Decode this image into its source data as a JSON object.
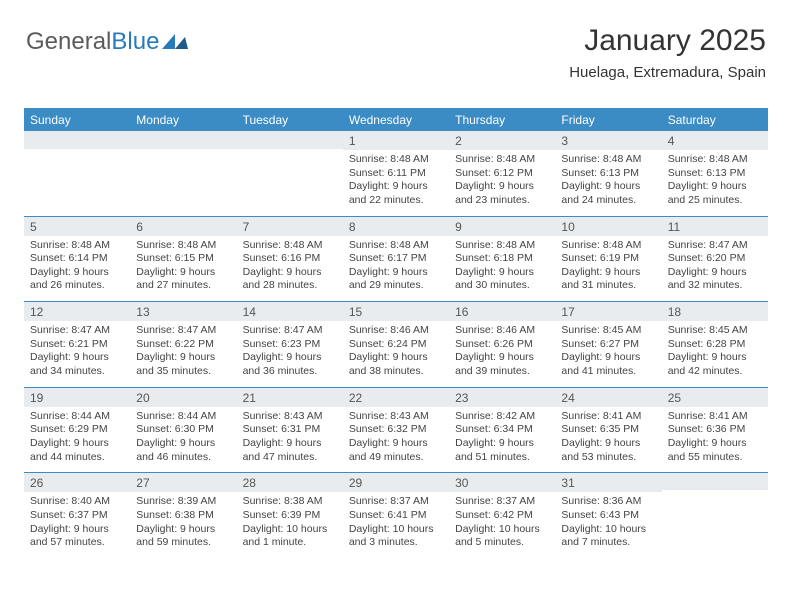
{
  "brand": {
    "part1": "General",
    "part2": "Blue"
  },
  "title": "January 2025",
  "location": "Huelaga, Extremadura, Spain",
  "colors": {
    "header_bg": "#3b8bc5",
    "header_text": "#ffffff",
    "daynum_bg": "#e9ecef",
    "row_divider": "#3b8bc5",
    "text": "#444444",
    "logo_gray": "#5b5b5b",
    "logo_blue": "#2a7ab9"
  },
  "weekdays": [
    "Sunday",
    "Monday",
    "Tuesday",
    "Wednesday",
    "Thursday",
    "Friday",
    "Saturday"
  ],
  "weeks": [
    [
      {
        "n": "",
        "t": ""
      },
      {
        "n": "",
        "t": ""
      },
      {
        "n": "",
        "t": ""
      },
      {
        "n": "1",
        "t": "Sunrise: 8:48 AM\nSunset: 6:11 PM\nDaylight: 9 hours\nand 22 minutes."
      },
      {
        "n": "2",
        "t": "Sunrise: 8:48 AM\nSunset: 6:12 PM\nDaylight: 9 hours\nand 23 minutes."
      },
      {
        "n": "3",
        "t": "Sunrise: 8:48 AM\nSunset: 6:13 PM\nDaylight: 9 hours\nand 24 minutes."
      },
      {
        "n": "4",
        "t": "Sunrise: 8:48 AM\nSunset: 6:13 PM\nDaylight: 9 hours\nand 25 minutes."
      }
    ],
    [
      {
        "n": "5",
        "t": "Sunrise: 8:48 AM\nSunset: 6:14 PM\nDaylight: 9 hours\nand 26 minutes."
      },
      {
        "n": "6",
        "t": "Sunrise: 8:48 AM\nSunset: 6:15 PM\nDaylight: 9 hours\nand 27 minutes."
      },
      {
        "n": "7",
        "t": "Sunrise: 8:48 AM\nSunset: 6:16 PM\nDaylight: 9 hours\nand 28 minutes."
      },
      {
        "n": "8",
        "t": "Sunrise: 8:48 AM\nSunset: 6:17 PM\nDaylight: 9 hours\nand 29 minutes."
      },
      {
        "n": "9",
        "t": "Sunrise: 8:48 AM\nSunset: 6:18 PM\nDaylight: 9 hours\nand 30 minutes."
      },
      {
        "n": "10",
        "t": "Sunrise: 8:48 AM\nSunset: 6:19 PM\nDaylight: 9 hours\nand 31 minutes."
      },
      {
        "n": "11",
        "t": "Sunrise: 8:47 AM\nSunset: 6:20 PM\nDaylight: 9 hours\nand 32 minutes."
      }
    ],
    [
      {
        "n": "12",
        "t": "Sunrise: 8:47 AM\nSunset: 6:21 PM\nDaylight: 9 hours\nand 34 minutes."
      },
      {
        "n": "13",
        "t": "Sunrise: 8:47 AM\nSunset: 6:22 PM\nDaylight: 9 hours\nand 35 minutes."
      },
      {
        "n": "14",
        "t": "Sunrise: 8:47 AM\nSunset: 6:23 PM\nDaylight: 9 hours\nand 36 minutes."
      },
      {
        "n": "15",
        "t": "Sunrise: 8:46 AM\nSunset: 6:24 PM\nDaylight: 9 hours\nand 38 minutes."
      },
      {
        "n": "16",
        "t": "Sunrise: 8:46 AM\nSunset: 6:26 PM\nDaylight: 9 hours\nand 39 minutes."
      },
      {
        "n": "17",
        "t": "Sunrise: 8:45 AM\nSunset: 6:27 PM\nDaylight: 9 hours\nand 41 minutes."
      },
      {
        "n": "18",
        "t": "Sunrise: 8:45 AM\nSunset: 6:28 PM\nDaylight: 9 hours\nand 42 minutes."
      }
    ],
    [
      {
        "n": "19",
        "t": "Sunrise: 8:44 AM\nSunset: 6:29 PM\nDaylight: 9 hours\nand 44 minutes."
      },
      {
        "n": "20",
        "t": "Sunrise: 8:44 AM\nSunset: 6:30 PM\nDaylight: 9 hours\nand 46 minutes."
      },
      {
        "n": "21",
        "t": "Sunrise: 8:43 AM\nSunset: 6:31 PM\nDaylight: 9 hours\nand 47 minutes."
      },
      {
        "n": "22",
        "t": "Sunrise: 8:43 AM\nSunset: 6:32 PM\nDaylight: 9 hours\nand 49 minutes."
      },
      {
        "n": "23",
        "t": "Sunrise: 8:42 AM\nSunset: 6:34 PM\nDaylight: 9 hours\nand 51 minutes."
      },
      {
        "n": "24",
        "t": "Sunrise: 8:41 AM\nSunset: 6:35 PM\nDaylight: 9 hours\nand 53 minutes."
      },
      {
        "n": "25",
        "t": "Sunrise: 8:41 AM\nSunset: 6:36 PM\nDaylight: 9 hours\nand 55 minutes."
      }
    ],
    [
      {
        "n": "26",
        "t": "Sunrise: 8:40 AM\nSunset: 6:37 PM\nDaylight: 9 hours\nand 57 minutes."
      },
      {
        "n": "27",
        "t": "Sunrise: 8:39 AM\nSunset: 6:38 PM\nDaylight: 9 hours\nand 59 minutes."
      },
      {
        "n": "28",
        "t": "Sunrise: 8:38 AM\nSunset: 6:39 PM\nDaylight: 10 hours\nand 1 minute."
      },
      {
        "n": "29",
        "t": "Sunrise: 8:37 AM\nSunset: 6:41 PM\nDaylight: 10 hours\nand 3 minutes."
      },
      {
        "n": "30",
        "t": "Sunrise: 8:37 AM\nSunset: 6:42 PM\nDaylight: 10 hours\nand 5 minutes."
      },
      {
        "n": "31",
        "t": "Sunrise: 8:36 AM\nSunset: 6:43 PM\nDaylight: 10 hours\nand 7 minutes."
      },
      {
        "n": "",
        "t": ""
      }
    ]
  ]
}
